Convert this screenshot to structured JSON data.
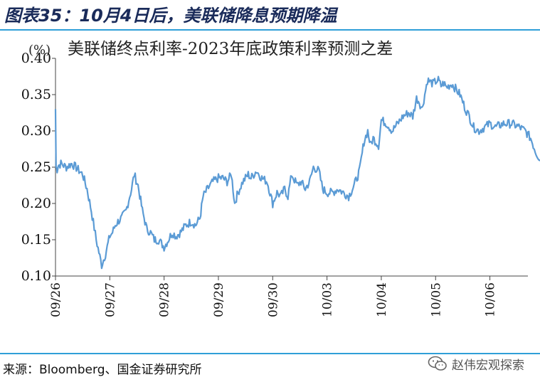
{
  "figure": {
    "title": "图表35：10月4日后，美联储降息预期降温",
    "source": "来源：Bloomberg、国金证券研究所",
    "watermark": "赵伟宏观探索",
    "watermark_icon": "wechat-icon"
  },
  "chart_data": {
    "type": "line",
    "title": "美联储终点利率-2023年底政策利率预测之差",
    "unit_label": "(%)",
    "xlabel": "",
    "ylabel": "",
    "ylim": [
      0.1,
      0.4
    ],
    "yticks": [
      "0.10",
      "0.15",
      "0.20",
      "0.25",
      "0.30",
      "0.35",
      "0.40"
    ],
    "x_tick_labels": [
      "09/26",
      "09/27",
      "09/28",
      "09/29",
      "09/30",
      "10/03",
      "10/04",
      "10/05",
      "10/06"
    ],
    "grid": false,
    "legend": "none",
    "line_color": "#5b9bd5",
    "series": [
      {
        "x": [
          0.0,
          0.01,
          0.03,
          0.05,
          0.1,
          0.2,
          0.3,
          0.4,
          0.5,
          0.58,
          0.66,
          0.75,
          0.85,
          0.92,
          1.0,
          1.05,
          1.1,
          1.15,
          1.22,
          1.3,
          1.4,
          1.45,
          1.52,
          1.6,
          1.68,
          1.75,
          1.82,
          1.9,
          2.0,
          2.08,
          2.15,
          2.22,
          2.3,
          2.4,
          2.5,
          2.58,
          2.66,
          2.72,
          2.8,
          2.9,
          3.0,
          3.08,
          3.16,
          3.24,
          3.3,
          3.36,
          3.45,
          3.55,
          3.6,
          3.7,
          3.8,
          3.9,
          4.0,
          4.08,
          4.15,
          4.22,
          4.28,
          4.35,
          4.45,
          4.52,
          4.6,
          4.68,
          4.75,
          4.85,
          4.92,
          5.0,
          5.1,
          5.2,
          5.3,
          5.4,
          5.5,
          5.6,
          5.68,
          5.75,
          5.8,
          5.85,
          5.9,
          5.95,
          6.0,
          6.1,
          6.2,
          6.3,
          6.4,
          6.5,
          6.58,
          6.65,
          6.7,
          6.75,
          6.85,
          6.95,
          7.0,
          7.05,
          7.1,
          7.15,
          7.2,
          7.3,
          7.45,
          7.55,
          7.62,
          7.7,
          7.8,
          7.9,
          8.0,
          8.1,
          8.25,
          8.4,
          8.55,
          8.65,
          8.75,
          8.85,
          8.95,
          9.05
        ],
        "y": [
          0.33,
          0.25,
          0.247,
          0.252,
          0.255,
          0.25,
          0.255,
          0.248,
          0.24,
          0.22,
          0.19,
          0.15,
          0.115,
          0.13,
          0.155,
          0.16,
          0.17,
          0.175,
          0.18,
          0.19,
          0.22,
          0.24,
          0.225,
          0.19,
          0.165,
          0.16,
          0.15,
          0.15,
          0.14,
          0.15,
          0.16,
          0.155,
          0.16,
          0.17,
          0.175,
          0.17,
          0.18,
          0.21,
          0.22,
          0.23,
          0.235,
          0.235,
          0.23,
          0.24,
          0.2,
          0.215,
          0.23,
          0.24,
          0.235,
          0.245,
          0.235,
          0.23,
          0.2,
          0.215,
          0.21,
          0.22,
          0.21,
          0.24,
          0.225,
          0.23,
          0.22,
          0.23,
          0.25,
          0.245,
          0.22,
          0.215,
          0.215,
          0.22,
          0.215,
          0.21,
          0.225,
          0.245,
          0.285,
          0.3,
          0.28,
          0.29,
          0.285,
          0.28,
          0.315,
          0.31,
          0.3,
          0.31,
          0.32,
          0.325,
          0.32,
          0.345,
          0.34,
          0.33,
          0.37,
          0.365,
          0.368,
          0.37,
          0.362,
          0.366,
          0.36,
          0.365,
          0.35,
          0.33,
          0.32,
          0.305,
          0.3,
          0.305,
          0.31,
          0.305,
          0.31,
          0.31,
          0.305,
          0.3,
          0.29,
          0.27,
          0.258,
          0.258
        ]
      }
    ]
  }
}
